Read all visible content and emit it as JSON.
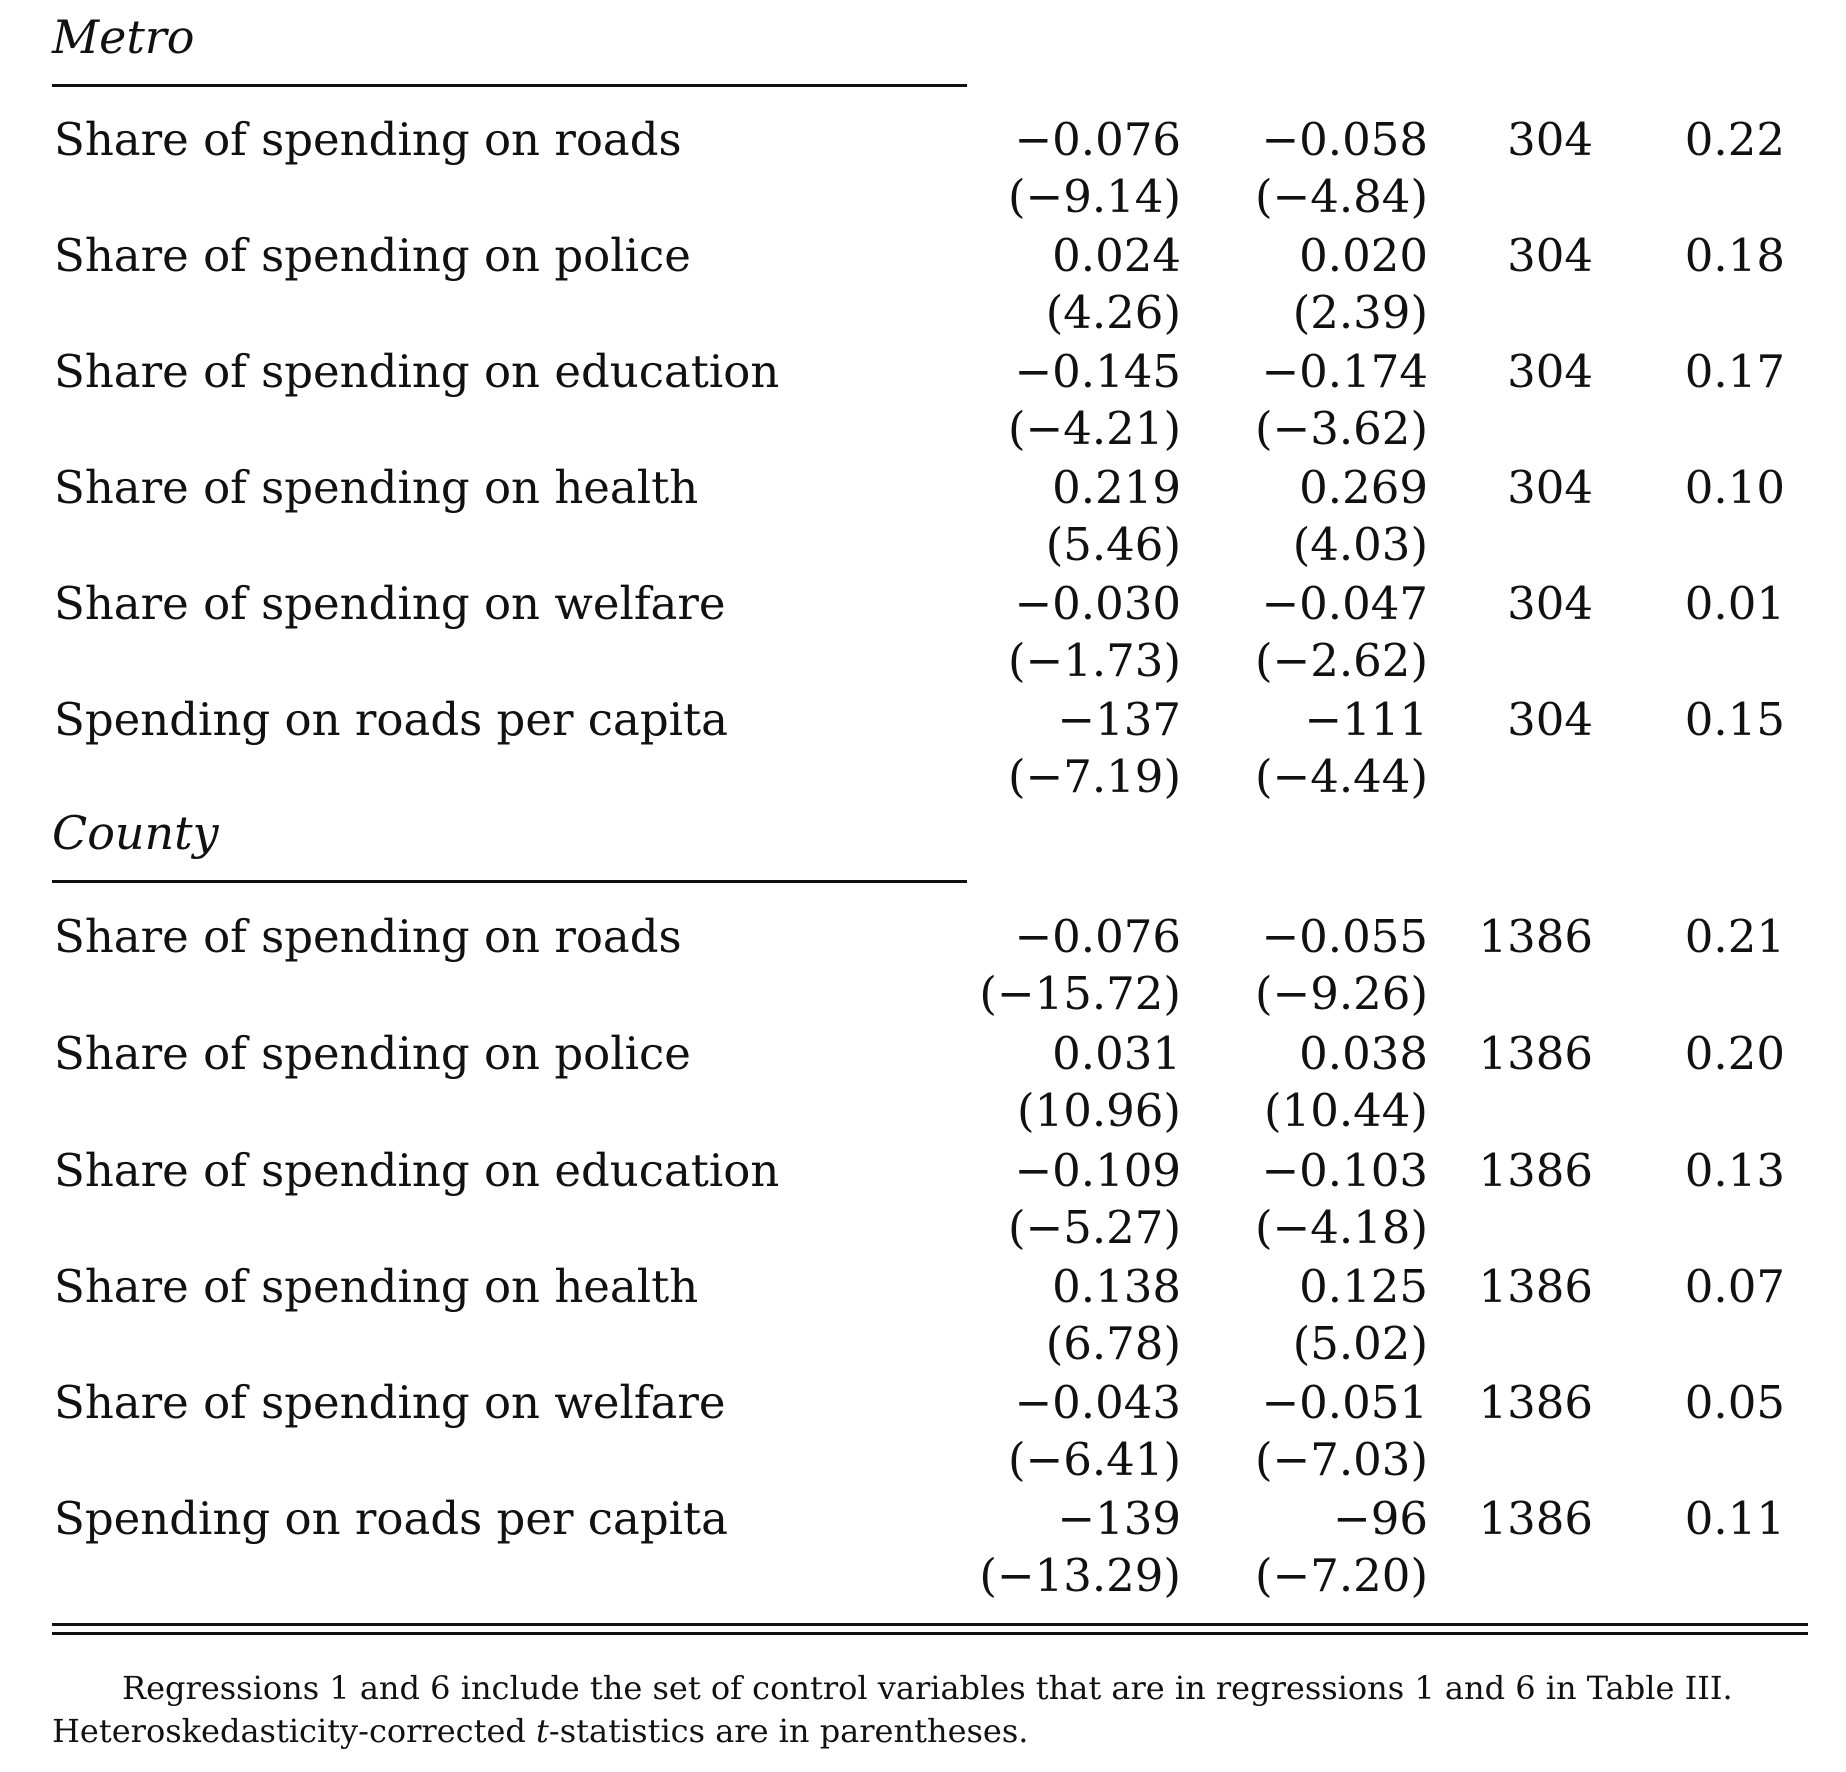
{
  "sections": [
    {
      "title": "Metro",
      "rows": [
        {
          "label": "Share of spending on roads",
          "coef1": "−0.076",
          "coef2": "−0.058",
          "n": "304",
          "r2": "0.22",
          "t1": "(−9.14)",
          "t2": "(−4.84)"
        },
        {
          "label": "Share of spending on police",
          "coef1": "0.024",
          "coef2": "0.020",
          "n": "304",
          "r2": "0.18",
          "t1": "(4.26)",
          "t2": "(2.39)"
        },
        {
          "label": "Share of spending on education",
          "coef1": "−0.145",
          "coef2": "−0.174",
          "n": "304",
          "r2": "0.17",
          "t1": "(−4.21)",
          "t2": "(−3.62)"
        },
        {
          "label": "Share of spending on health",
          "coef1": "0.219",
          "coef2": "0.269",
          "n": "304",
          "r2": "0.10",
          "t1": "(5.46)",
          "t2": "(4.03)"
        },
        {
          "label": "Share of spending on welfare",
          "coef1": "−0.030",
          "coef2": "−0.047",
          "n": "304",
          "r2": "0.01",
          "t1": "(−1.73)",
          "t2": "(−2.62)"
        },
        {
          "label": "Spending on roads per capita",
          "coef1": "−137",
          "coef2": "−111",
          "n": "304",
          "r2": "0.15",
          "t1": "(−7.19)",
          "t2": "(−4.44)"
        }
      ]
    },
    {
      "title": "County",
      "rows": [
        {
          "label": "Share of spending on roads",
          "coef1": "−0.076",
          "coef2": "−0.055",
          "n": "1386",
          "r2": "0.21",
          "t1": "(−15.72)",
          "t2": "(−9.26)"
        },
        {
          "label": "Share of spending on police",
          "coef1": "0.031",
          "coef2": "0.038",
          "n": "1386",
          "r2": "0.20",
          "t1": "(10.96)",
          "t2": "(10.44)"
        },
        {
          "label": "Share of spending on education",
          "coef1": "−0.109",
          "coef2": "−0.103",
          "n": "1386",
          "r2": "0.13",
          "t1": "(−5.27)",
          "t2": "(−4.18)"
        },
        {
          "label": "Share of spending on health",
          "coef1": "0.138",
          "coef2": "0.125",
          "n": "1386",
          "r2": "0.07",
          "t1": "(6.78)",
          "t2": "(5.02)"
        },
        {
          "label": "Share of spending on welfare",
          "coef1": "−0.043",
          "coef2": "−0.051",
          "n": "1386",
          "r2": "0.05",
          "t1": "(−6.41)",
          "t2": "(−7.03)"
        },
        {
          "label": "Spending on roads per capita",
          "coef1": "−139",
          "coef2": "−96",
          "n": "1386",
          "r2": "0.11",
          "t1": "(−13.29)",
          "t2": "(−7.20)"
        }
      ]
    }
  ],
  "note": {
    "line1": "Regressions 1 and 6 include the set of control variables that are in regressions 1 and 6 in Table III.",
    "line2_before": "Heteroskedasticity-corrected ",
    "line2_italic": "t",
    "line2_after": "-statistics are in parentheses."
  }
}
